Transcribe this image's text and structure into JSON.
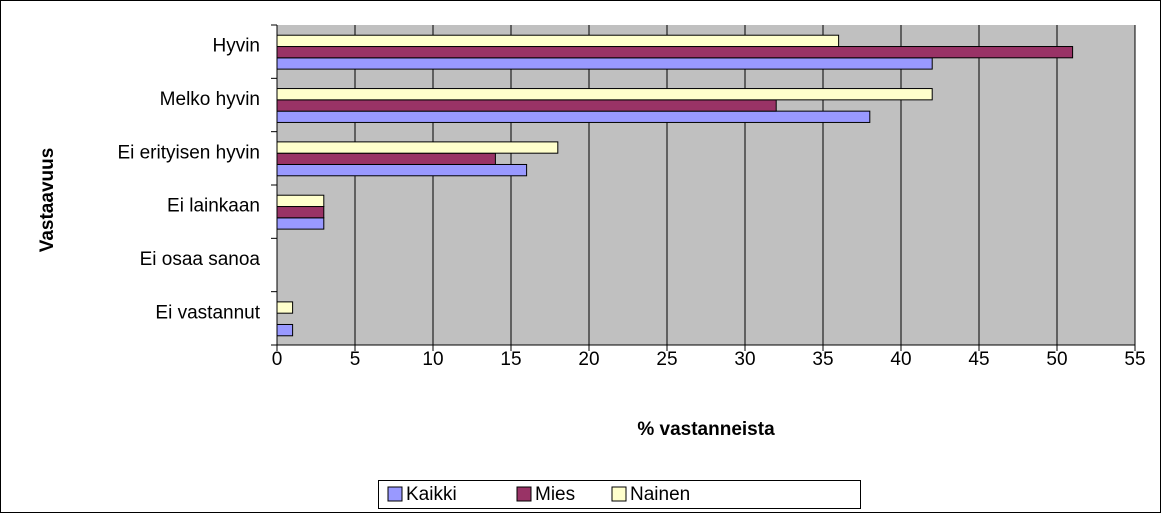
{
  "chart_data": {
    "type": "bar",
    "orientation": "horizontal",
    "xlabel": "% vastanneista",
    "ylabel": "Vastaavuus",
    "categories": [
      "Hyvin",
      "Melko hyvin",
      "Ei erityisen hyvin",
      "Ei lainkaan",
      "Ei osaa sanoa",
      "Ei vastannut"
    ],
    "series": [
      {
        "name": "Kaikki",
        "color": "#9999ff",
        "values": [
          42,
          38,
          16,
          3,
          0,
          1
        ]
      },
      {
        "name": "Mies",
        "color": "#993366",
        "values": [
          51,
          32,
          14,
          3,
          0,
          0
        ]
      },
      {
        "name": "Nainen",
        "color": "#ffffcc",
        "values": [
          36,
          42,
          18,
          3,
          0,
          1
        ]
      }
    ],
    "xlim": [
      0,
      55
    ],
    "xticks": [
      0,
      5,
      10,
      15,
      20,
      25,
      30,
      35,
      40,
      45,
      50,
      55
    ],
    "grid": true,
    "legend": "bottom"
  }
}
